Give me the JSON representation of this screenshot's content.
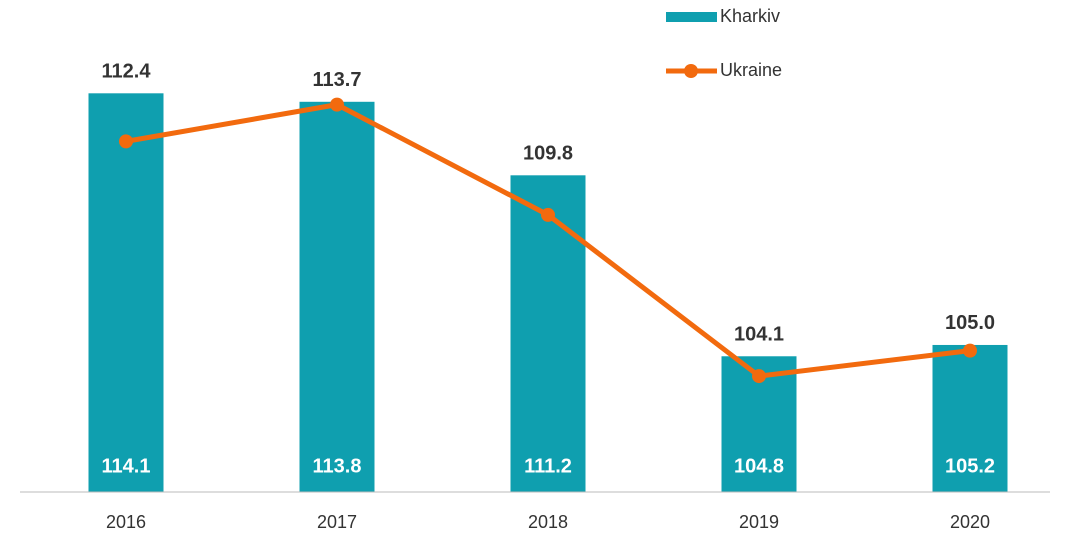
{
  "chart_data": {
    "type": "bar_line",
    "categories": [
      "2016",
      "2017",
      "2018",
      "2019",
      "2020"
    ],
    "series": [
      {
        "name": "Kharkiv",
        "type": "bar",
        "color": "#0f9faf",
        "values": [
          114.1,
          113.8,
          111.2,
          104.8,
          105.2
        ],
        "value_labels": [
          "114.1",
          "113.8",
          "111.2",
          "104.8",
          "105.2"
        ]
      },
      {
        "name": "Ukraine",
        "type": "line",
        "color": "#f26a0e",
        "values": [
          112.4,
          113.7,
          109.8,
          104.1,
          105.0
        ],
        "value_labels": [
          "112.4",
          "113.7",
          "109.8",
          "104.1",
          "105.0"
        ]
      }
    ],
    "ylim": [
      100,
      117.4
    ],
    "legend": "top-right"
  }
}
